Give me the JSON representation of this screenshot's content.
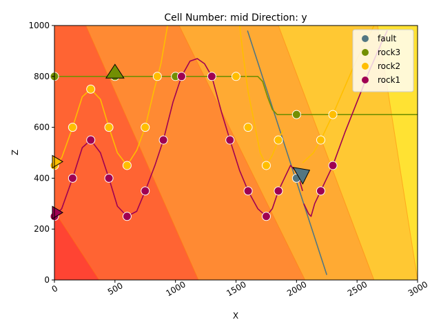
{
  "chart_data": {
    "type": "scatter",
    "title": "Cell Number: mid Direction: y",
    "xlabel": "X",
    "ylabel": "Z",
    "xlim": [
      0,
      3000
    ],
    "ylim": [
      0,
      1000
    ],
    "xticks": [
      0,
      500,
      1000,
      1500,
      2000,
      2500,
      3000
    ],
    "yticks": [
      0,
      200,
      400,
      600,
      800,
      1000
    ],
    "xtick_labels": [
      "0",
      "500",
      "1000",
      "1500",
      "2000",
      "2500",
      "3000"
    ],
    "ytick_labels": [
      "0",
      "200",
      "400",
      "600",
      "800",
      "1000"
    ],
    "grid": false,
    "legend_position": "top-right",
    "background_bands": {
      "colors": [
        "#ff4433",
        "#ff6433",
        "#ff8a33",
        "#ffaa33",
        "#ffc833",
        "#ffe233",
        "#ffff33"
      ],
      "boundaries_z0": [
        370,
        1190,
        2070,
        2640,
        3000,
        3600
      ],
      "boundaries_z1000": [
        -1000,
        260,
        1030,
        1850,
        2670,
        3400
      ]
    },
    "series": [
      {
        "name": "fault",
        "color": "#527682",
        "points": [
          [
            2000,
            400
          ]
        ],
        "orientations": [
          [
            2040,
            410
          ]
        ],
        "line": [
          [
            1595,
            980
          ],
          [
            2250,
            20
          ]
        ]
      },
      {
        "name": "rock3",
        "color": "#728f02",
        "points": [
          [
            0,
            800
          ],
          [
            500,
            800
          ],
          [
            1000,
            800
          ],
          [
            2000,
            650
          ]
        ],
        "orientations": [
          [
            500,
            815
          ]
        ],
        "line": [
          [
            0,
            800
          ],
          [
            1680,
            800
          ],
          [
            1720,
            780
          ],
          [
            1760,
            720
          ],
          [
            1800,
            670
          ],
          [
            1840,
            650
          ],
          [
            3000,
            650
          ]
        ]
      },
      {
        "name": "rock2",
        "color": "#ffbe00",
        "points": [
          [
            0,
            450
          ],
          [
            150,
            600
          ],
          [
            300,
            750
          ],
          [
            450,
            600
          ],
          [
            600,
            450
          ],
          [
            750,
            600
          ],
          [
            850,
            800
          ],
          [
            1500,
            800
          ],
          [
            1600,
            600
          ],
          [
            1750,
            450
          ],
          [
            1850,
            550
          ],
          [
            2200,
            550
          ],
          [
            2300,
            650
          ]
        ],
        "orientations": [
          [
            0,
            465
          ]
        ],
        "line_a": [
          [
            0,
            450
          ],
          [
            60,
            480
          ],
          [
            150,
            600
          ],
          [
            230,
            720
          ],
          [
            300,
            750
          ],
          [
            380,
            710
          ],
          [
            450,
            600
          ],
          [
            520,
            500
          ],
          [
            600,
            450
          ],
          [
            680,
            510
          ],
          [
            750,
            600
          ],
          [
            820,
            740
          ],
          [
            880,
            850
          ],
          [
            920,
            960
          ],
          [
            935,
            1000
          ]
        ],
        "line_b": [
          [
            1530,
            1000
          ],
          [
            1560,
            880
          ],
          [
            1600,
            740
          ],
          [
            1650,
            620
          ],
          [
            1700,
            500
          ],
          [
            1750,
            450
          ],
          [
            1800,
            490
          ],
          [
            1850,
            550
          ],
          [
            1890,
            590
          ]
        ],
        "line_c": [
          [
            2050,
            460
          ],
          [
            2140,
            500
          ],
          [
            2200,
            550
          ],
          [
            2300,
            650
          ],
          [
            2400,
            760
          ],
          [
            2500,
            870
          ],
          [
            2600,
            960
          ],
          [
            2640,
            1000
          ]
        ]
      },
      {
        "name": "rock1",
        "color": "#9f0052",
        "points": [
          [
            0,
            250
          ],
          [
            150,
            400
          ],
          [
            300,
            550
          ],
          [
            450,
            400
          ],
          [
            600,
            250
          ],
          [
            750,
            350
          ],
          [
            900,
            550
          ],
          [
            1050,
            800
          ],
          [
            1300,
            800
          ],
          [
            1450,
            550
          ],
          [
            1600,
            350
          ],
          [
            1750,
            250
          ],
          [
            1850,
            350
          ],
          [
            2200,
            350
          ],
          [
            2300,
            450
          ]
        ],
        "orientations": [
          [
            0,
            265
          ]
        ],
        "line_a": [
          [
            0,
            250
          ],
          [
            60,
            280
          ],
          [
            150,
            400
          ],
          [
            230,
            520
          ],
          [
            300,
            550
          ],
          [
            380,
            500
          ],
          [
            450,
            400
          ],
          [
            520,
            290
          ],
          [
            600,
            250
          ],
          [
            680,
            270
          ],
          [
            750,
            350
          ],
          [
            830,
            450
          ],
          [
            900,
            550
          ],
          [
            980,
            700
          ],
          [
            1050,
            800
          ],
          [
            1120,
            860
          ],
          [
            1180,
            870
          ],
          [
            1240,
            850
          ],
          [
            1300,
            800
          ],
          [
            1380,
            660
          ],
          [
            1450,
            550
          ],
          [
            1530,
            430
          ],
          [
            1600,
            350
          ],
          [
            1680,
            280
          ],
          [
            1750,
            250
          ],
          [
            1800,
            280
          ],
          [
            1850,
            350
          ],
          [
            1910,
            410
          ],
          [
            1950,
            450
          ],
          [
            1990,
            430
          ],
          [
            2020,
            400
          ],
          [
            2050,
            350
          ]
        ],
        "line_b": [
          [
            2060,
            300
          ],
          [
            2100,
            260
          ],
          [
            2120,
            250
          ],
          [
            2150,
            300
          ],
          [
            2200,
            350
          ],
          [
            2300,
            450
          ],
          [
            2400,
            580
          ],
          [
            2500,
            700
          ],
          [
            2600,
            820
          ],
          [
            2700,
            930
          ],
          [
            2750,
            980
          ]
        ]
      }
    ]
  }
}
